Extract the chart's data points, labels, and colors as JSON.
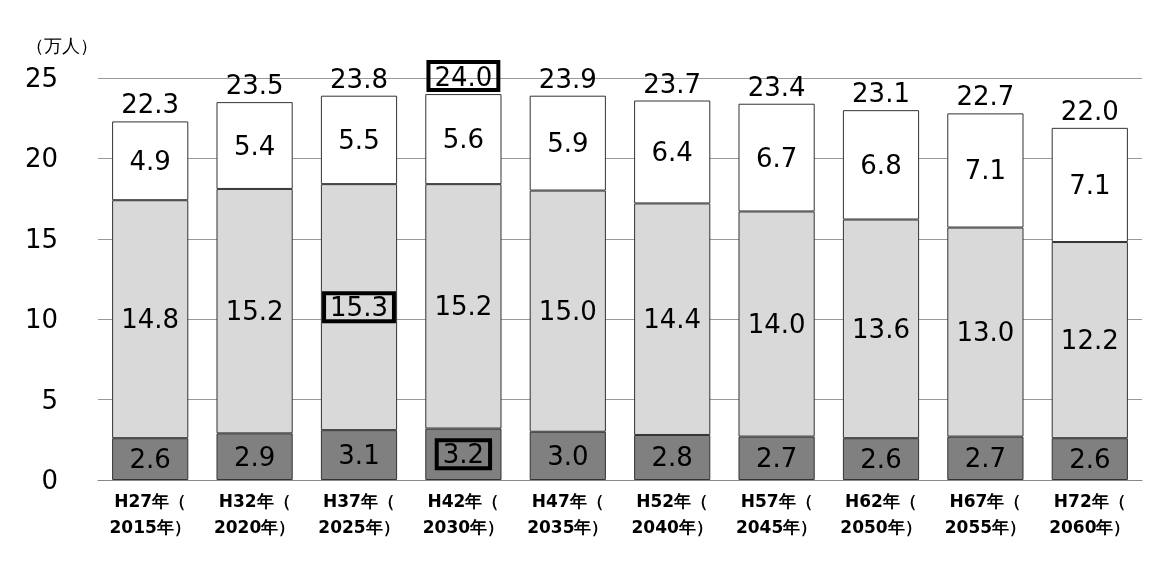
{
  "chart_data": {
    "type": "bar",
    "stacked": true,
    "ylabel": "（万人）",
    "categories": [
      "H27年（2015年）",
      "H32年（2020年）",
      "H37年（2025年）",
      "H42年（2030年）",
      "H47年（2035年）",
      "H52年（2040年）",
      "H57年（2045年）",
      "H62年（2050年）",
      "H67年（2055年）",
      "H72年（2060年）"
    ],
    "series": [
      {
        "color": "#808080",
        "values": [
          2.6,
          2.9,
          3.1,
          3.2,
          3.0,
          2.8,
          2.7,
          2.6,
          2.7,
          2.6
        ],
        "value_labels": [
          "2.6",
          "2.9",
          "3.1",
          "3.2",
          "3.0",
          "2.8",
          "2.7",
          "2.6",
          "2.7",
          "2.6"
        ]
      },
      {
        "color": "#d9d9d9",
        "values": [
          14.8,
          15.2,
          15.3,
          15.2,
          15.0,
          14.4,
          14.0,
          13.6,
          13.0,
          12.2
        ],
        "value_labels": [
          "14.8",
          "15.2",
          "15.3",
          "15.2",
          "15.0",
          "14.4",
          "14.0",
          "13.6",
          "13.0",
          "12.2"
        ]
      },
      {
        "color": "#ffffff",
        "values": [
          4.9,
          5.4,
          5.5,
          5.6,
          5.9,
          6.4,
          6.7,
          6.8,
          7.1,
          7.1
        ],
        "value_labels": [
          "4.9",
          "5.4",
          "5.5",
          "5.6",
          "5.9",
          "6.4",
          "6.7",
          "6.8",
          "7.1",
          "7.1"
        ]
      }
    ],
    "totals": [
      "22.3",
      "23.5",
      "23.8",
      "24.0",
      "23.9",
      "23.7",
      "23.4",
      "23.1",
      "22.7",
      "22.0"
    ],
    "ylim": [
      0,
      25
    ],
    "yticks": [
      0,
      5,
      10,
      15,
      20,
      25
    ],
    "grid": "y"
  }
}
